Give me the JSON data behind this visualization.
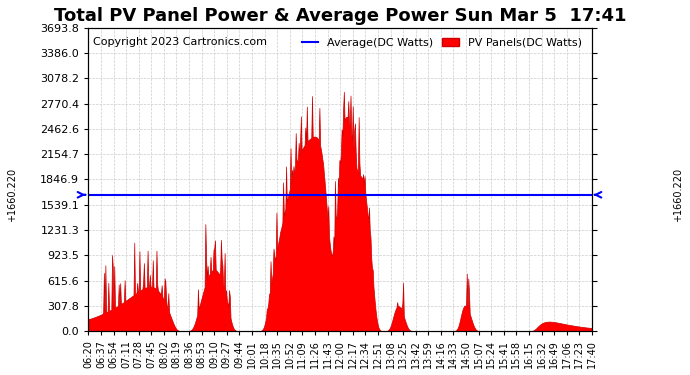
{
  "title": "Total PV Panel Power & Average Power Sun Mar 5  17:41",
  "copyright": "Copyright 2023 Cartronics.com",
  "ylabel_left": "+1660.220",
  "ylabel_right": "+1660.220",
  "average_value": 1660.22,
  "ymax": 3693.8,
  "ymin": 0.0,
  "yticks_right": [
    0.0,
    307.8,
    615.6,
    923.5,
    1231.3,
    1539.1,
    1846.9,
    2154.7,
    2462.6,
    2770.4,
    3078.2,
    3386.0,
    3693.8
  ],
  "legend_average_label": "Average(DC Watts)",
  "legend_pv_label": "PV Panels(DC Watts)",
  "legend_average_color": "#0000ff",
  "legend_pv_color": "#ff0000",
  "background_color": "#ffffff",
  "grid_color": "#cccccc",
  "area_fill_color": "#ff0000",
  "area_edge_color": "#cc0000",
  "average_line_color": "#0000ff",
  "title_fontsize": 13,
  "copyright_fontsize": 8,
  "xtick_fontsize": 7,
  "ytick_fontsize": 8,
  "xlabel_fontsize": 9
}
